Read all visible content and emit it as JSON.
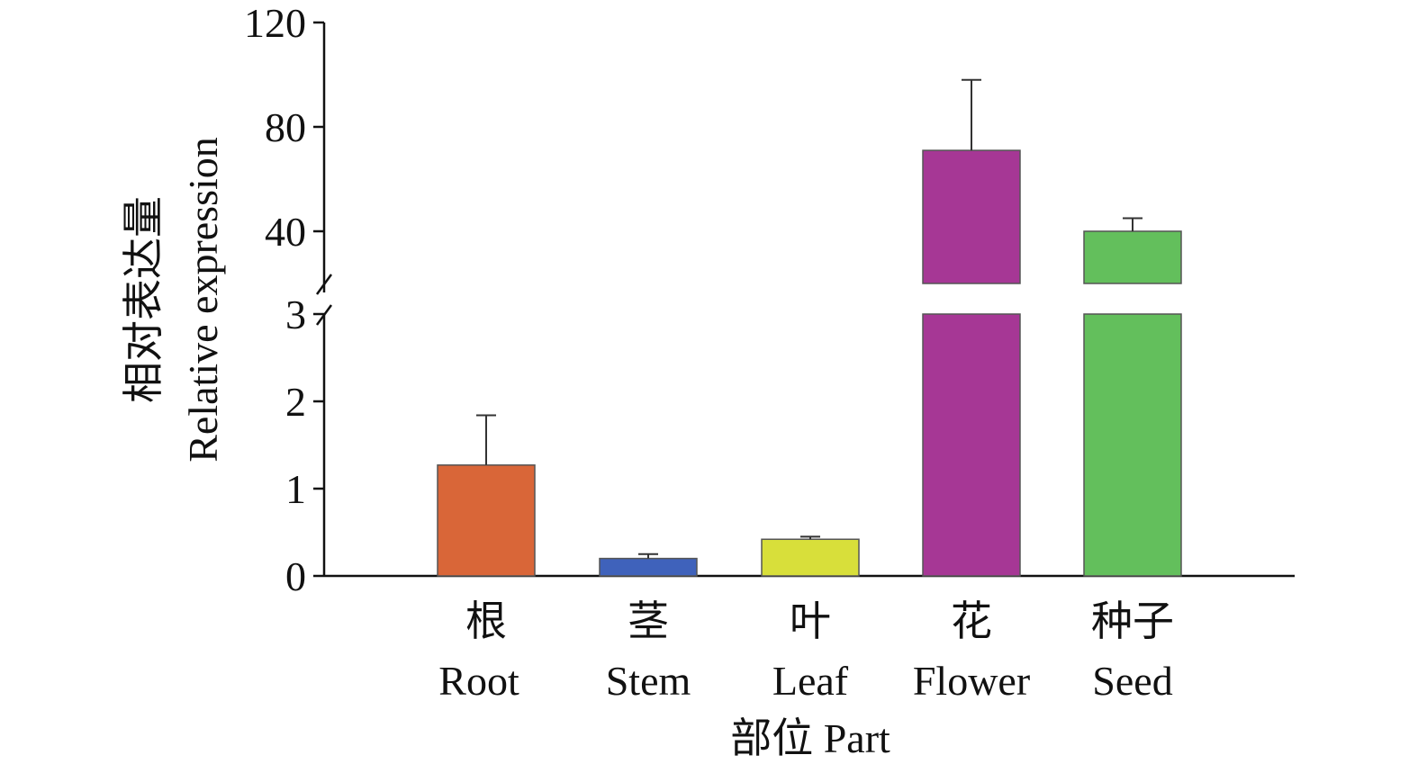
{
  "chart_data": {
    "type": "bar",
    "broken_axis": true,
    "categories": [
      {
        "zh": "根",
        "en": "Root"
      },
      {
        "zh": "茎",
        "en": "Stem"
      },
      {
        "zh": "叶",
        "en": "Leaf"
      },
      {
        "zh": "花",
        "en": "Flower"
      },
      {
        "zh": "种子",
        "en": "Seed"
      }
    ],
    "values": [
      1.27,
      0.2,
      0.42,
      71,
      40
    ],
    "errors": [
      0.57,
      0.05,
      0.03,
      27,
      5
    ],
    "colors": [
      "#d96638",
      "#3f62bb",
      "#d8df3a",
      "#a63795",
      "#63bf5c"
    ],
    "lower_segment": {
      "range": [
        0,
        3
      ],
      "ticks": [
        "0",
        "1",
        "2",
        "3"
      ]
    },
    "upper_segment": {
      "range": [
        20,
        120
      ],
      "ticks": [
        "40",
        "80",
        "120"
      ]
    },
    "ylabel_zh": "相对表达量",
    "ylabel_en": "Relative expression",
    "xlabel": "部位 Part"
  }
}
